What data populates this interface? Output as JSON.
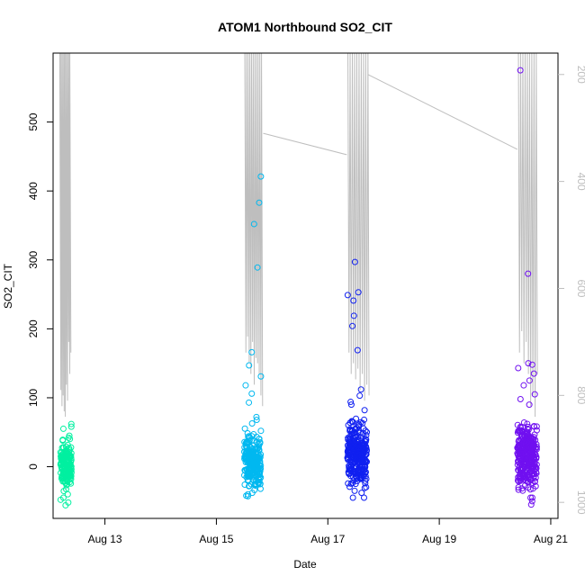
{
  "chart_data": {
    "type": "scatter",
    "title": "ATOM1 Northbound SO2_CIT",
    "xlabel": "Date",
    "ylabel": "SO2_CIT",
    "x_ticks": [
      "Aug 13",
      "Aug 15",
      "Aug 17",
      "Aug 19",
      "Aug 21"
    ],
    "y_ticks": [
      0,
      100,
      200,
      300,
      400,
      500
    ],
    "y2_ticks": [
      200,
      400,
      600,
      800,
      1000
    ],
    "xlim_days": [
      12.07,
      21.13
    ],
    "ylim": [
      -75,
      600
    ],
    "y2lim": [
      1030,
      160
    ],
    "y2_reversed": true,
    "point_style": "open-circle",
    "line_color": "#bebebe",
    "clusters": [
      {
        "day_start": 12.2,
        "day_end": 12.4,
        "color": "#00f0a0",
        "n": 160,
        "y_center": 0,
        "y_spread": 18,
        "outliers": [
          62,
          58,
          55,
          45,
          42,
          -48,
          -52,
          -56,
          -45,
          -40
        ]
      },
      {
        "day_start": 15.5,
        "day_end": 15.8,
        "color": "#00b8f0",
        "n": 240,
        "y_center": 10,
        "y_spread": 20,
        "outliers": [
          421,
          383,
          352,
          289,
          166,
          147,
          131,
          118,
          106,
          93,
          72,
          68,
          -40,
          -42
        ]
      },
      {
        "day_start": 17.35,
        "day_end": 17.7,
        "color": "#1020f0",
        "n": 320,
        "y_center": 20,
        "y_spread": 22,
        "outliers": [
          297,
          253,
          249,
          241,
          219,
          204,
          169,
          112,
          103,
          94,
          90,
          82,
          -35,
          -38
        ]
      },
      {
        "day_start": 20.4,
        "day_end": 20.75,
        "color": "#7010f0",
        "n": 320,
        "y_center": 15,
        "y_spread": 22,
        "outliers": [
          575,
          280,
          150,
          148,
          143,
          135,
          125,
          118,
          105,
          98,
          90,
          -45,
          -50,
          -55
        ]
      }
    ],
    "trajectory": {
      "segments": [
        {
          "days": [
            12.19,
            12.21,
            12.23,
            12.25,
            12.27,
            12.29,
            12.31,
            12.33,
            12.35,
            12.37
          ],
          "low_y2": [
            790,
            820,
            800,
            830,
            840,
            780,
            810,
            700,
            760,
            720
          ]
        },
        {
          "days": [
            15.51,
            15.54,
            15.57,
            15.6,
            15.63,
            15.66,
            15.69,
            15.72,
            15.75,
            15.78,
            15.81
          ],
          "low_y2": [
            720,
            690,
            740,
            760,
            700,
            780,
            730,
            740,
            760,
            800,
            820
          ]
        },
        {
          "days": [
            17.36,
            17.4,
            17.44,
            17.48,
            17.52,
            17.56,
            17.6,
            17.64,
            17.68,
            17.72
          ],
          "low_y2": [
            720,
            760,
            740,
            770,
            750,
            790,
            760,
            810,
            780,
            800
          ]
        },
        {
          "days": [
            20.42,
            20.46,
            20.5,
            20.54,
            20.58,
            20.62,
            20.66,
            20.7,
            20.74
          ],
          "low_y2": [
            720,
            680,
            740,
            700,
            760,
            820,
            800,
            840,
            760
          ]
        }
      ],
      "connectors": [
        {
          "from": [
            15.84,
            310
          ],
          "to": [
            17.34,
            350
          ]
        },
        {
          "from": [
            17.72,
            200
          ],
          "to": [
            20.4,
            340
          ]
        }
      ]
    }
  }
}
